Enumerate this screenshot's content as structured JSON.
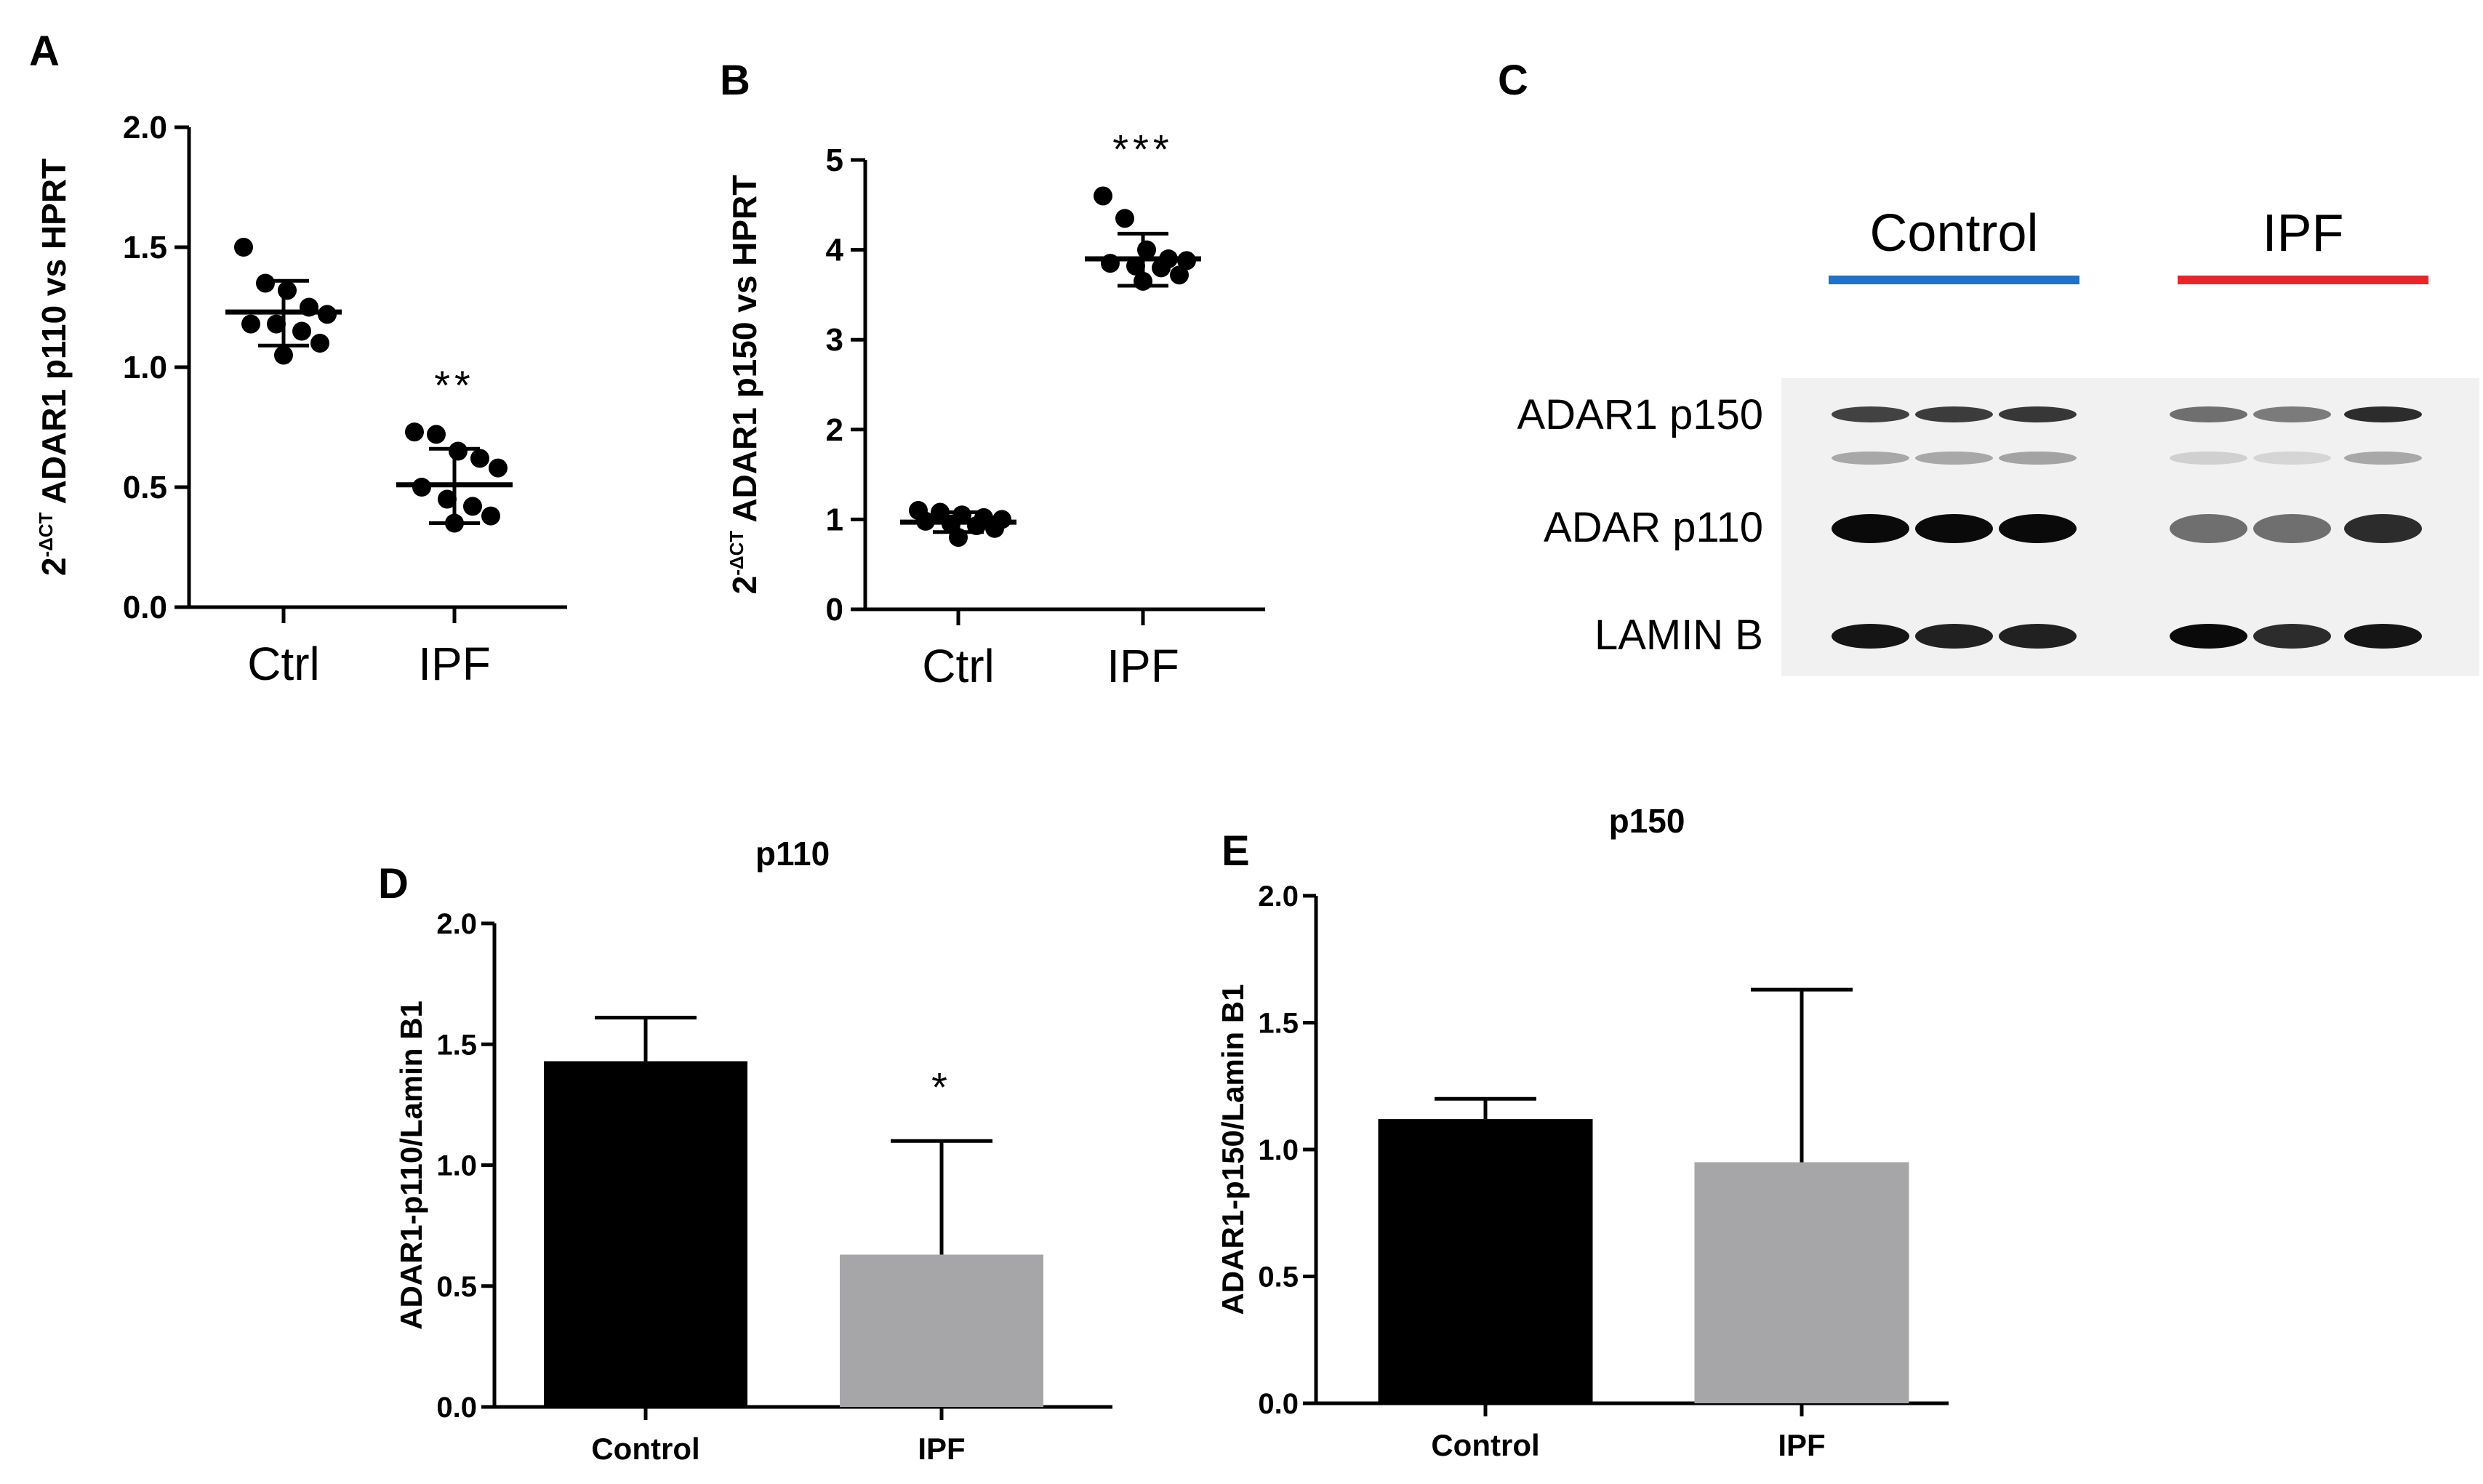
{
  "panels": {
    "A": "A",
    "B": "B",
    "C": "C",
    "D": "D",
    "E": "E"
  },
  "blot": {
    "groups": [
      "Control",
      "IPF"
    ],
    "group_colors": [
      "#1f72c8",
      "#e8262a"
    ],
    "rows": [
      "ADAR1 p150",
      "ADAR p110",
      "LAMIN B"
    ],
    "band_intensity": {
      "ADAR1 p150": [
        0.75,
        0.78,
        0.8,
        0.55,
        0.5,
        0.85
      ],
      "ADAR1 p150 lower": [
        0.3,
        0.3,
        0.32,
        0.12,
        0.1,
        0.3
      ],
      "ADAR p110": [
        1.0,
        1.0,
        1.0,
        0.55,
        0.55,
        0.85
      ],
      "LAMIN B": [
        0.95,
        0.9,
        0.9,
        1.0,
        0.85,
        0.95
      ]
    }
  },
  "chart_data": [
    {
      "id": "A",
      "type": "scatter",
      "ylabel": "2-ΔCT ADAR1 p110 vs HPRT",
      "ylabel_sup": "-ΔCT",
      "ylabel_rest": "ADAR1 p110 vs HPRT",
      "ylim": [
        0,
        2.0
      ],
      "ticks": [
        "0.0",
        "0.5",
        "1.0",
        "1.5",
        "2.0"
      ],
      "tick_values": [
        0,
        0.5,
        1.0,
        1.5,
        2.0
      ],
      "categories": [
        "Ctrl",
        "IPF"
      ],
      "series": [
        {
          "category": "Ctrl",
          "points": [
            1.5,
            1.35,
            1.32,
            1.25,
            1.22,
            1.18,
            1.18,
            1.15,
            1.1,
            1.05
          ],
          "mean": 1.23,
          "err": [
            1.09,
            1.36
          ]
        },
        {
          "category": "IPF",
          "points": [
            0.73,
            0.72,
            0.65,
            0.62,
            0.58,
            0.5,
            0.45,
            0.42,
            0.38,
            0.35
          ],
          "mean": 0.51,
          "err": [
            0.35,
            0.66
          ]
        }
      ],
      "annotations": [
        {
          "category": "IPF",
          "text": "**"
        }
      ]
    },
    {
      "id": "B",
      "type": "scatter",
      "ylabel": "2-ΔCT ADAR1 p150 vs HPRT",
      "ylabel_sup": "-ΔCT",
      "ylabel_rest": "ADAR1 p150 vs HPRT",
      "ylim": [
        0,
        5
      ],
      "ticks": [
        "0",
        "1",
        "2",
        "3",
        "4",
        "5"
      ],
      "tick_values": [
        0,
        1,
        2,
        3,
        4,
        5
      ],
      "categories": [
        "Ctrl",
        "IPF"
      ],
      "series": [
        {
          "category": "Ctrl",
          "points": [
            1.1,
            1.08,
            1.05,
            1.02,
            1.0,
            0.98,
            0.95,
            0.93,
            0.9,
            0.8
          ],
          "mean": 0.97,
          "err": [
            0.86,
            1.08
          ]
        },
        {
          "category": "IPF",
          "points": [
            4.6,
            4.35,
            4.0,
            3.9,
            3.88,
            3.85,
            3.82,
            3.8,
            3.72,
            3.65
          ],
          "mean": 3.9,
          "err": [
            3.6,
            4.18
          ]
        }
      ],
      "annotations": [
        {
          "category": "IPF",
          "text": "***"
        }
      ]
    },
    {
      "id": "D",
      "type": "bar",
      "title": "p110",
      "ylabel": "ADAR1-p110/Lamin B1",
      "ylim": [
        0,
        2.0
      ],
      "ticks": [
        "0.0",
        "0.5",
        "1.0",
        "1.5",
        "2.0"
      ],
      "tick_values": [
        0,
        0.5,
        1.0,
        1.5,
        2.0
      ],
      "categories": [
        "Control",
        "IPF"
      ],
      "values": [
        1.43,
        0.63
      ],
      "errors": [
        0.18,
        0.47
      ],
      "colors": [
        "#000000",
        "#a6a6a8"
      ],
      "annotations": [
        {
          "category": "IPF",
          "text": "*"
        }
      ]
    },
    {
      "id": "E",
      "type": "bar",
      "title": "p150",
      "ylabel": "ADAR1-p150/Lamin B1",
      "ylim": [
        0,
        2.0
      ],
      "ticks": [
        "0.0",
        "0.5",
        "1.0",
        "1.5",
        "2.0"
      ],
      "tick_values": [
        0,
        0.5,
        1.0,
        1.5,
        2.0
      ],
      "categories": [
        "Control",
        "IPF"
      ],
      "values": [
        1.12,
        0.95
      ],
      "errors": [
        0.08,
        0.68
      ],
      "colors": [
        "#000000",
        "#a6a6a8"
      ]
    }
  ]
}
